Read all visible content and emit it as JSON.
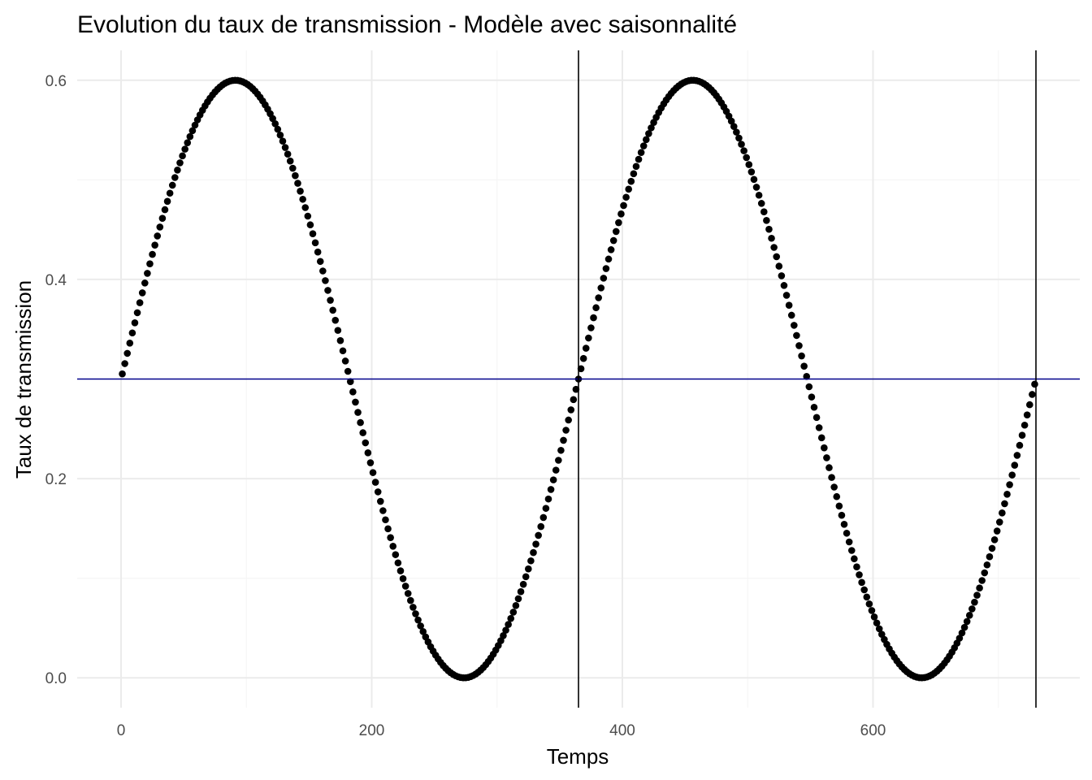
{
  "chart_data": {
    "type": "scatter",
    "title": "Evolution du taux de transmission - Modèle avec saisonnalité",
    "xlabel": "Temps",
    "ylabel": "Taux de transmission",
    "xlim": [
      -35,
      765
    ],
    "ylim": [
      -0.03,
      0.63
    ],
    "x_ticks": [
      0,
      200,
      400,
      600
    ],
    "x_tick_labels": [
      "0",
      "200",
      "400",
      "600"
    ],
    "y_ticks": [
      0.0,
      0.2,
      0.4,
      0.6
    ],
    "y_tick_labels": [
      "0.0",
      "0.2",
      "0.4",
      "0.6"
    ],
    "x_minor_ticks": [
      100,
      300,
      500,
      700
    ],
    "y_minor_ticks": [
      0.1,
      0.3,
      0.5
    ],
    "grid": true,
    "legend": "none",
    "series": [
      {
        "function": "0.3 + 0.3*sin(2*pi*x/365)",
        "x_start": 1,
        "x_end": 730,
        "x_step": 2,
        "color": "#000000",
        "marker": "circle"
      }
    ],
    "hlines": [
      {
        "y": 0.3,
        "color": "#00008B"
      }
    ],
    "vlines": [
      {
        "x": 365,
        "color": "#000000"
      },
      {
        "x": 730,
        "color": "#000000"
      }
    ],
    "colors": {
      "points": "#000000",
      "hline": "#00008B",
      "vline": "#000000",
      "grid_major": "#ebebeb",
      "grid_minor": "#f5f5f5",
      "tick_label": "#4d4d4d"
    }
  }
}
